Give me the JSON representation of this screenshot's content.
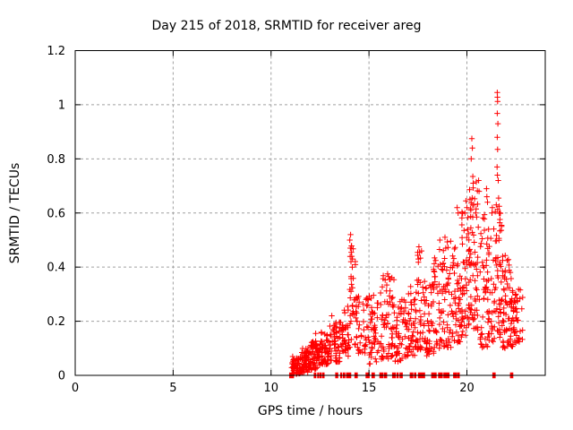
{
  "chart_data": {
    "type": "scatter",
    "title": "Day 215 of 2018, SRMTID for receiver areg",
    "xlabel": "GPS time / hours",
    "ylabel": "SRMTID / TECUs",
    "xlim": [
      0,
      24
    ],
    "ylim": [
      0,
      1.2
    ],
    "xtick_values": [
      0,
      5,
      10,
      15,
      20
    ],
    "xtick_labels": [
      "0",
      "5",
      "10",
      "15",
      "20"
    ],
    "ytick_values": [
      0,
      0.2,
      0.4,
      0.6,
      0.8,
      1.0,
      1.2
    ],
    "ytick_labels": [
      "0",
      "0.2",
      "0.4",
      "0.6",
      "0.8",
      "1",
      "1.2"
    ],
    "grid": true,
    "legend": "none",
    "marker": "plus",
    "marker_color": "#ff0000",
    "grid_color": "#a0a0a0",
    "border_color": "#000000",
    "points": [
      [
        12.28,
        0.155
      ],
      [
        13.1,
        0.22
      ],
      [
        14.02,
        0.5
      ],
      [
        14.06,
        0.52
      ],
      [
        14.05,
        0.47
      ],
      [
        14.1,
        0.455
      ],
      [
        14.12,
        0.44
      ],
      [
        14.08,
        0.42
      ],
      [
        14.15,
        0.4
      ],
      [
        15.95,
        0.375
      ],
      [
        16.0,
        0.365
      ],
      [
        16.05,
        0.355
      ],
      [
        17.55,
        0.475
      ],
      [
        17.58,
        0.455
      ],
      [
        17.52,
        0.43
      ],
      [
        18.62,
        0.5
      ],
      [
        18.6,
        0.465
      ],
      [
        18.88,
        0.51
      ],
      [
        18.92,
        0.47
      ],
      [
        19.5,
        0.62
      ],
      [
        19.55,
        0.6
      ],
      [
        19.9,
        0.6
      ],
      [
        19.95,
        0.645
      ],
      [
        20.0,
        0.62
      ],
      [
        20.2,
        0.61
      ],
      [
        20.22,
        0.8
      ],
      [
        20.25,
        0.875
      ],
      [
        20.27,
        0.655
      ],
      [
        20.28,
        0.84
      ],
      [
        20.3,
        0.735
      ],
      [
        20.32,
        0.71
      ],
      [
        20.35,
        0.63
      ],
      [
        20.45,
        0.6
      ],
      [
        20.48,
        0.715
      ],
      [
        20.5,
        0.585
      ],
      [
        20.6,
        0.72
      ],
      [
        20.62,
        0.68
      ],
      [
        21.0,
        0.69
      ],
      [
        21.02,
        0.66
      ],
      [
        21.05,
        0.64
      ],
      [
        21.28,
        0.6
      ],
      [
        21.3,
        0.62
      ],
      [
        21.45,
        0.605
      ],
      [
        21.5,
        0.63
      ],
      [
        21.54,
        0.77
      ],
      [
        21.55,
        1.045
      ],
      [
        21.56,
        1.028
      ],
      [
        21.57,
        1.012
      ],
      [
        21.55,
        0.968
      ],
      [
        21.58,
        0.93
      ],
      [
        21.55,
        0.88
      ],
      [
        21.57,
        0.835
      ],
      [
        21.56,
        0.74
      ],
      [
        21.6,
        0.72
      ],
      [
        21.62,
        0.655
      ],
      [
        21.65,
        0.625
      ],
      [
        21.68,
        0.6
      ],
      [
        22.5,
        0.3
      ],
      [
        22.55,
        0.285
      ]
    ],
    "clusters": [
      {
        "t0": 11.05,
        "t1": 11.5,
        "n": 55,
        "vmin": 0.005,
        "vmax": 0.07
      },
      {
        "t0": 11.5,
        "t1": 12.0,
        "n": 65,
        "vmin": 0.01,
        "vmax": 0.1
      },
      {
        "t0": 12.0,
        "t1": 12.5,
        "n": 65,
        "vmin": 0.02,
        "vmax": 0.13
      },
      {
        "t0": 12.5,
        "t1": 13.0,
        "n": 60,
        "vmin": 0.04,
        "vmax": 0.16
      },
      {
        "t0": 13.0,
        "t1": 13.5,
        "n": 50,
        "vmin": 0.05,
        "vmax": 0.2
      },
      {
        "t0": 13.5,
        "t1": 13.95,
        "n": 45,
        "vmin": 0.07,
        "vmax": 0.27
      },
      {
        "t0": 13.95,
        "t1": 14.35,
        "n": 35,
        "vmin": 0.1,
        "vmax": 0.48
      },
      {
        "t0": 14.35,
        "t1": 14.9,
        "n": 40,
        "vmin": 0.08,
        "vmax": 0.3
      },
      {
        "t0": 14.9,
        "t1": 15.5,
        "n": 50,
        "vmin": 0.04,
        "vmax": 0.3
      },
      {
        "t0": 15.5,
        "t1": 16.3,
        "n": 70,
        "vmin": 0.06,
        "vmax": 0.37
      },
      {
        "t0": 16.3,
        "t1": 16.9,
        "n": 50,
        "vmin": 0.05,
        "vmax": 0.28
      },
      {
        "t0": 16.9,
        "t1": 17.45,
        "n": 50,
        "vmin": 0.07,
        "vmax": 0.33
      },
      {
        "t0": 17.45,
        "t1": 17.85,
        "n": 40,
        "vmin": 0.09,
        "vmax": 0.46
      },
      {
        "t0": 17.85,
        "t1": 18.3,
        "n": 45,
        "vmin": 0.07,
        "vmax": 0.35
      },
      {
        "t0": 18.3,
        "t1": 18.75,
        "n": 40,
        "vmin": 0.09,
        "vmax": 0.44
      },
      {
        "t0": 18.75,
        "t1": 19.2,
        "n": 45,
        "vmin": 0.1,
        "vmax": 0.5
      },
      {
        "t0": 19.2,
        "t1": 19.7,
        "n": 50,
        "vmin": 0.12,
        "vmax": 0.5
      },
      {
        "t0": 19.7,
        "t1": 20.1,
        "n": 45,
        "vmin": 0.14,
        "vmax": 0.62
      },
      {
        "t0": 20.1,
        "t1": 20.55,
        "n": 60,
        "vmin": 0.17,
        "vmax": 0.7
      },
      {
        "t0": 20.55,
        "t1": 21.05,
        "n": 45,
        "vmin": 0.1,
        "vmax": 0.6
      },
      {
        "t0": 21.05,
        "t1": 21.45,
        "n": 40,
        "vmin": 0.12,
        "vmax": 0.55
      },
      {
        "t0": 21.45,
        "t1": 21.78,
        "n": 45,
        "vmin": 0.14,
        "vmax": 0.62
      },
      {
        "t0": 21.78,
        "t1": 22.35,
        "n": 70,
        "vmin": 0.1,
        "vmax": 0.45
      },
      {
        "t0": 22.35,
        "t1": 22.85,
        "n": 40,
        "vmin": 0.12,
        "vmax": 0.32
      }
    ],
    "zero_segments": [
      [
        10.95,
        11.15
      ],
      [
        12.2,
        12.3
      ],
      [
        12.38,
        12.44
      ],
      [
        12.5,
        12.56
      ],
      [
        12.62,
        12.72
      ],
      [
        13.3,
        13.42
      ],
      [
        13.55,
        13.62
      ],
      [
        13.68,
        13.78
      ],
      [
        13.85,
        13.95
      ],
      [
        13.98,
        14.08
      ],
      [
        14.28,
        14.42
      ],
      [
        14.85,
        15.02
      ],
      [
        15.15,
        15.28
      ],
      [
        15.55,
        15.72
      ],
      [
        15.78,
        15.92
      ],
      [
        16.2,
        16.35
      ],
      [
        16.42,
        16.5
      ],
      [
        16.58,
        16.72
      ],
      [
        17.1,
        17.25
      ],
      [
        17.32,
        17.4
      ],
      [
        17.52,
        17.85
      ],
      [
        18.2,
        18.45
      ],
      [
        18.55,
        18.75
      ],
      [
        18.82,
        19.1
      ],
      [
        19.32,
        19.48
      ],
      [
        19.52,
        19.62
      ],
      [
        21.32,
        21.45
      ],
      [
        22.22,
        22.35
      ]
    ],
    "seed": 42
  }
}
